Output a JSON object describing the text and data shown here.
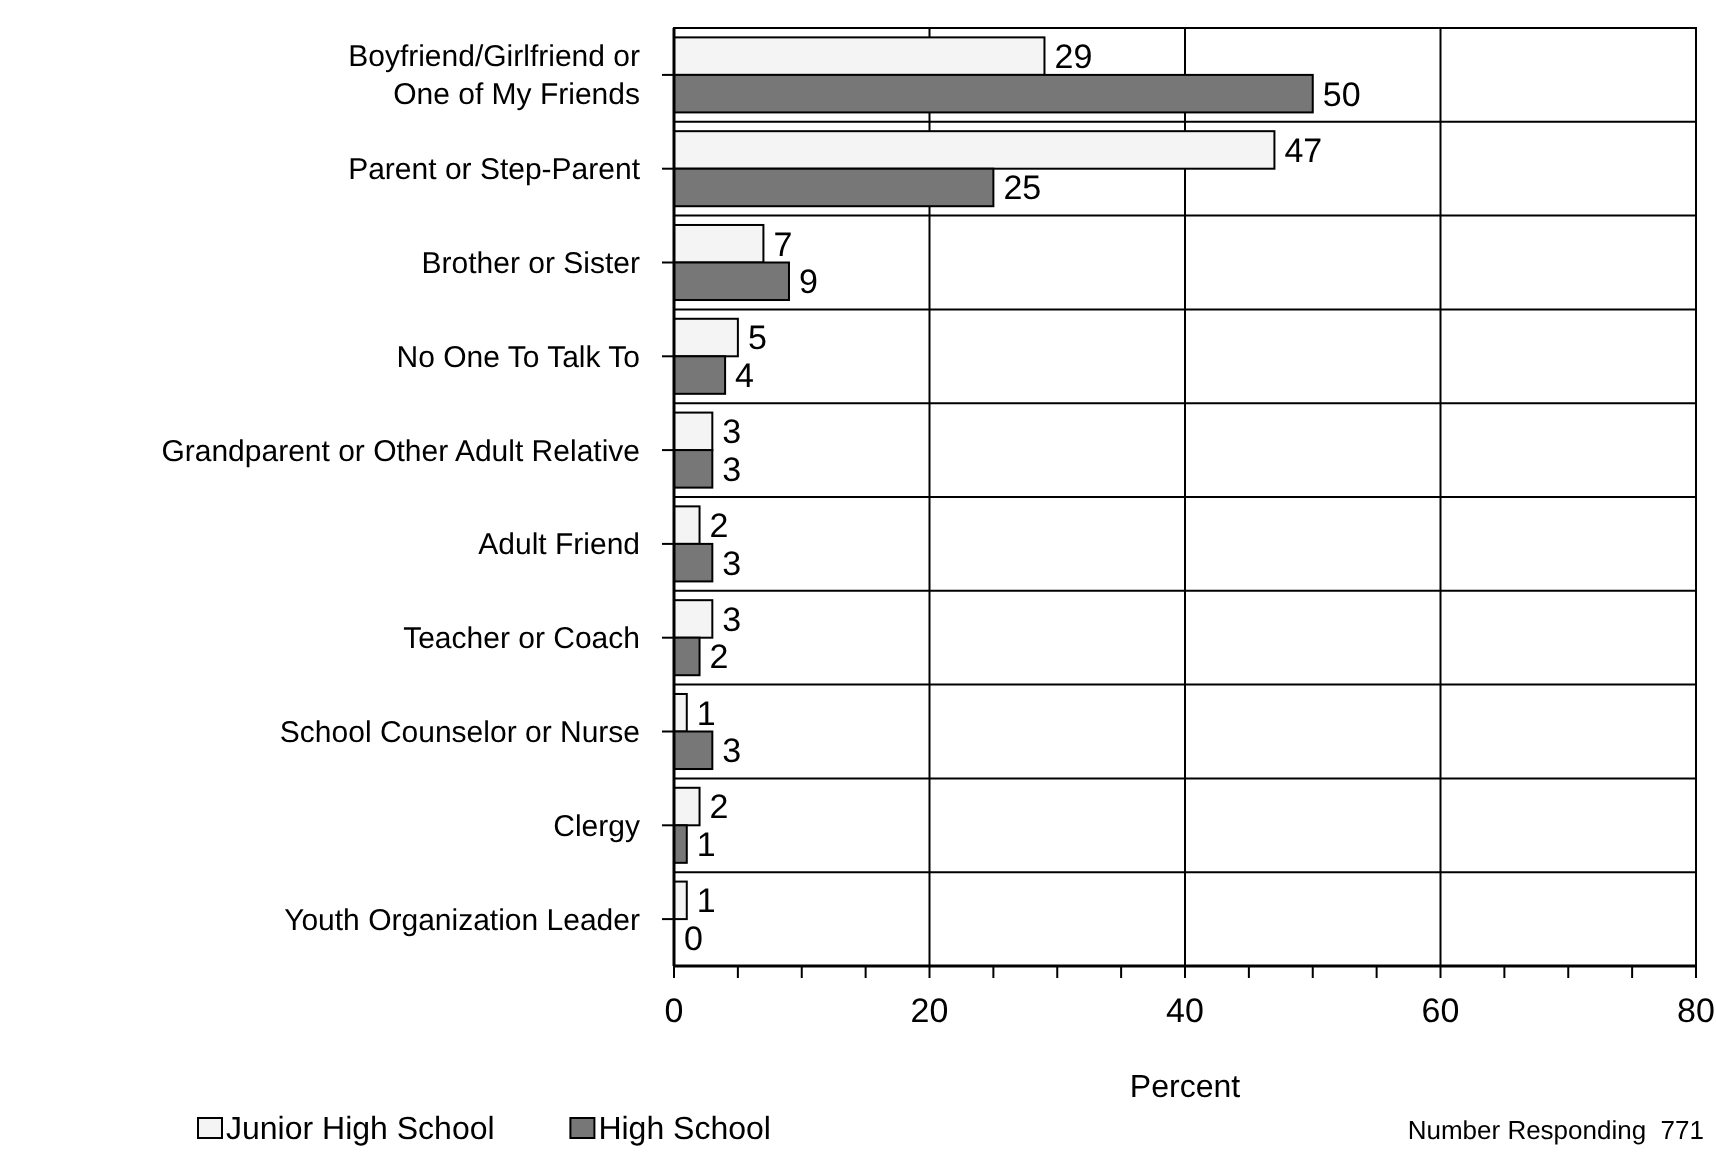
{
  "chart_data": {
    "type": "bar",
    "orientation": "horizontal",
    "categories": [
      "Boyfriend/Girlfriend or\nOne of My Friends",
      "Parent or Step-Parent",
      "Brother or Sister",
      "No One To Talk To",
      "Grandparent or Other Adult Relative",
      "Adult Friend",
      "Teacher or Coach",
      "School Counselor or Nurse",
      "Clergy",
      "Youth Organization Leader"
    ],
    "series": [
      {
        "name": "Junior High School",
        "color": "#f4f4f4",
        "values": [
          29,
          47,
          7,
          5,
          3,
          2,
          3,
          1,
          2,
          1
        ]
      },
      {
        "name": "High School",
        "color": "#777777",
        "values": [
          50,
          25,
          9,
          4,
          3,
          3,
          2,
          3,
          1,
          0
        ]
      }
    ],
    "xlabel": "Percent",
    "xlim": [
      0,
      80
    ],
    "xticks": [
      0,
      {
        "value": 5,
        "label": null
      },
      {
        "value": 10,
        "label": null
      },
      {
        "value": 15,
        "label": null
      },
      20,
      {
        "value": 25,
        "label": null
      },
      {
        "value": 30,
        "label": null
      },
      {
        "value": 35,
        "label": null
      },
      40,
      {
        "value": 45,
        "label": null
      },
      {
        "value": 50,
        "label": null
      },
      {
        "value": 55,
        "label": null
      },
      60,
      {
        "value": 65,
        "label": null
      },
      {
        "value": 70,
        "label": null
      },
      {
        "value": 75,
        "label": null
      },
      80
    ],
    "grid": true,
    "legend": "bottom left",
    "data_labels": true,
    "annotations": [
      "Number Responding  771"
    ]
  }
}
